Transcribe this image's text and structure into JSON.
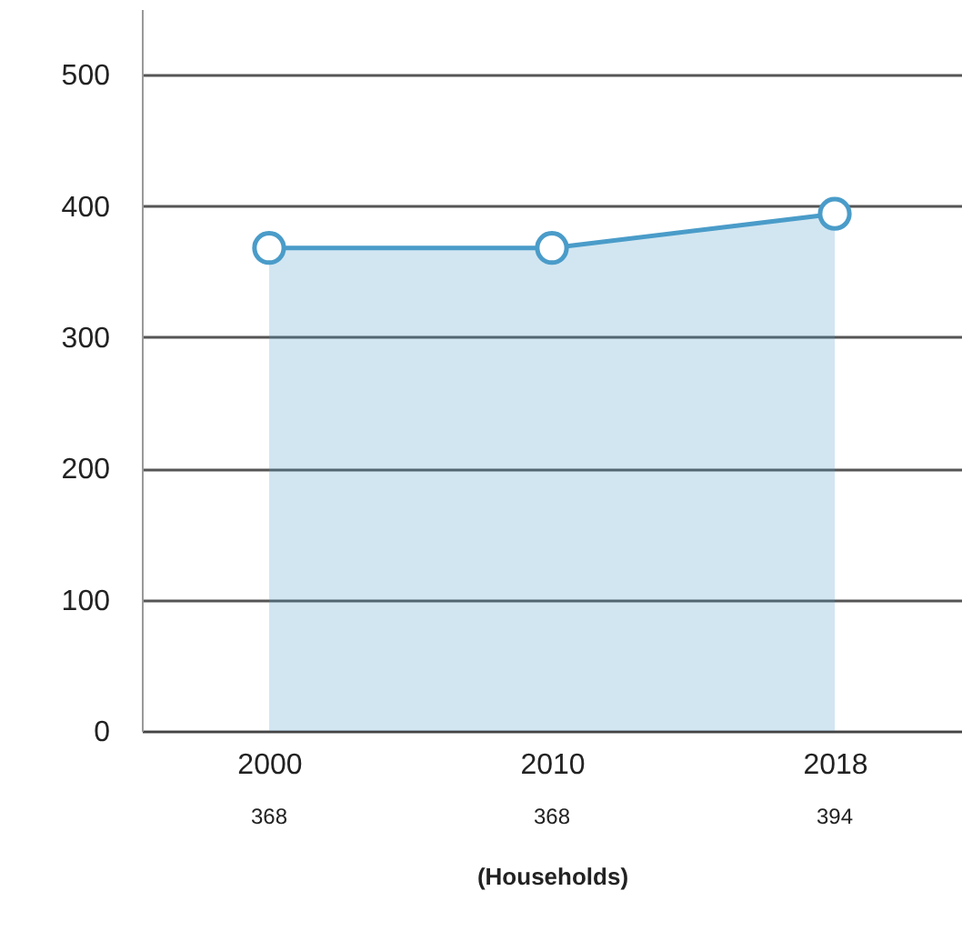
{
  "chart_data": {
    "type": "area",
    "categories": [
      "2000",
      "2010",
      "2018"
    ],
    "series": [
      {
        "color": "#4a9cc9",
        "values": [
          368,
          368,
          394
        ]
      }
    ],
    "data_labels": true,
    "xlabel": "(Households)",
    "ylim": [
      0,
      550
    ],
    "yticks": [
      0,
      100,
      200,
      300,
      400,
      500
    ],
    "grid": "y",
    "marker": "circle"
  }
}
